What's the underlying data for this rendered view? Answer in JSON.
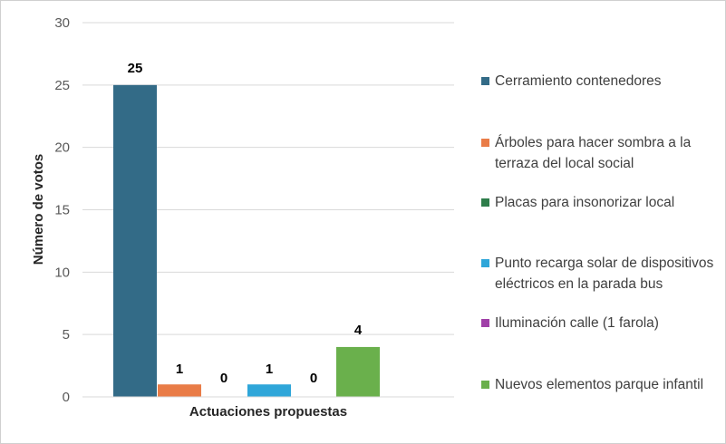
{
  "chart_data": {
    "type": "bar",
    "xlabel": "Actuaciones propuestas",
    "ylabel": "Número de votos",
    "ylim": [
      0,
      30
    ],
    "yticks": [
      0,
      5,
      10,
      15,
      20,
      25,
      30
    ],
    "grid": true,
    "legend_position": "right",
    "series": [
      {
        "name": "Cerramiento contenedores",
        "value": 25,
        "color": "#336b87",
        "value_label": "25"
      },
      {
        "name": "Árboles para hacer sombra a la terraza del local social",
        "value": 1,
        "color": "#e97c47",
        "value_label": "1"
      },
      {
        "name": "Placas para insonorizar local",
        "value": 0,
        "color": "#2e7d4a",
        "value_label": "0"
      },
      {
        "name": "Punto recarga solar de dispositivos eléctricos en la parada bus",
        "value": 1,
        "color": "#2fa6d9",
        "value_label": "1"
      },
      {
        "name": "Iluminación calle (1 farola)",
        "value": 0,
        "color": "#a040a8",
        "value_label": "0"
      },
      {
        "name": "Nuevos elementos parque infantil",
        "value": 4,
        "color": "#6ab04c",
        "value_label": "4"
      }
    ]
  }
}
